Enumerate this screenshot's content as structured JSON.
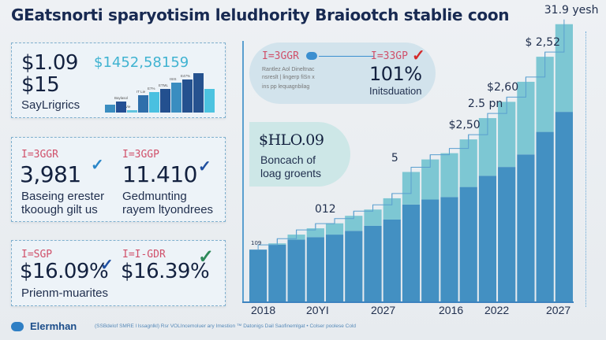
{
  "title": "GEatsnorti sparyotisim leludhority Braiootch stablie coon",
  "cards": {
    "top": {
      "value1": "$1.09",
      "value2": "$15",
      "label": "SayLrigrics",
      "mini_chart_title": "$1452,58159",
      "mini_labels": [
        "Baylasol",
        "Vie",
        "IT Lie",
        "E7%",
        "ETML",
        "ISIS",
        "E47%"
      ]
    },
    "middle": {
      "left": {
        "code": "I=3GGR",
        "value": "3,981",
        "label_line1": "Baseing erester",
        "label_line2": "tkoough gilt us",
        "check": "✓"
      },
      "right": {
        "code": "I=3GGP",
        "value": "11.410",
        "label_line1": "Gedmunting",
        "label_line2": "rayem ltyondrees",
        "check": "✓"
      }
    },
    "bottom": {
      "left": {
        "code": "I=SGP",
        "value": "$16.09%",
        "check": "✓"
      },
      "right": {
        "code": "I=I-GDR",
        "value": "$16.39%",
        "check": "✓"
      },
      "label": "Prienm-muarites"
    }
  },
  "pill": {
    "code_left": "I=3GGR",
    "code_right": "I=33GP",
    "value": "101%",
    "label": "Initsduation",
    "tiny_lines": [
      "Rantlez  Aol  Dineltnac",
      "nsreslt | lingerp  fiSn x",
      "ins pp lequagnbilag"
    ]
  },
  "blob": {
    "value": "$HLO.09",
    "label_line1": "Boncach of",
    "label_line2": "loag groents"
  },
  "chart_data": {
    "type": "bar",
    "stacked": true,
    "title": "",
    "x_tick_labels": [
      "2018",
      "20YI",
      "2027",
      "2016",
      "2022",
      "2027"
    ],
    "series": [
      {
        "name": "base",
        "color": "#4390c2",
        "values": [
          42,
          46,
          50,
          52,
          54,
          57,
          61,
          66,
          78,
          82,
          84,
          92,
          101,
          108,
          118,
          136,
          152
        ]
      },
      {
        "name": "top",
        "color": "#7dc7d3",
        "values": [
          0,
          1,
          4,
          7,
          9,
          12,
          13,
          17,
          26,
          32,
          35,
          38,
          46,
          52,
          58,
          60,
          70
        ]
      }
    ],
    "annotations": [
      {
        "text": "109",
        "bar": 0
      },
      {
        "text": "012",
        "bar": 4
      },
      {
        "text": "5",
        "bar": 8
      },
      {
        "text": "$2,50",
        "bar": 11
      },
      {
        "text": "2.5 pn",
        "bar": 12
      },
      {
        "text": "$2,60",
        "bar": 13
      },
      {
        "text": "$ 2,52",
        "bar": 15
      },
      {
        "text": "31.9 yesh",
        "bar": 16
      }
    ],
    "ylim": [
      0,
      230
    ],
    "grid": false
  },
  "footer": {
    "brand": "Elermhan",
    "note": "(SSBdelof SMRE l lssagnlkl) Rsr VOLIncemoluer ary Imestion ™ Datonigs Dail Saofinemlgat  •  Colser poolese Cold"
  },
  "colors": {
    "base": "#4390c2",
    "top": "#7dc7d3",
    "accent_red": "#d0506a",
    "check_blue": "#1f4fa0",
    "check_green": "#2e8a5a"
  }
}
